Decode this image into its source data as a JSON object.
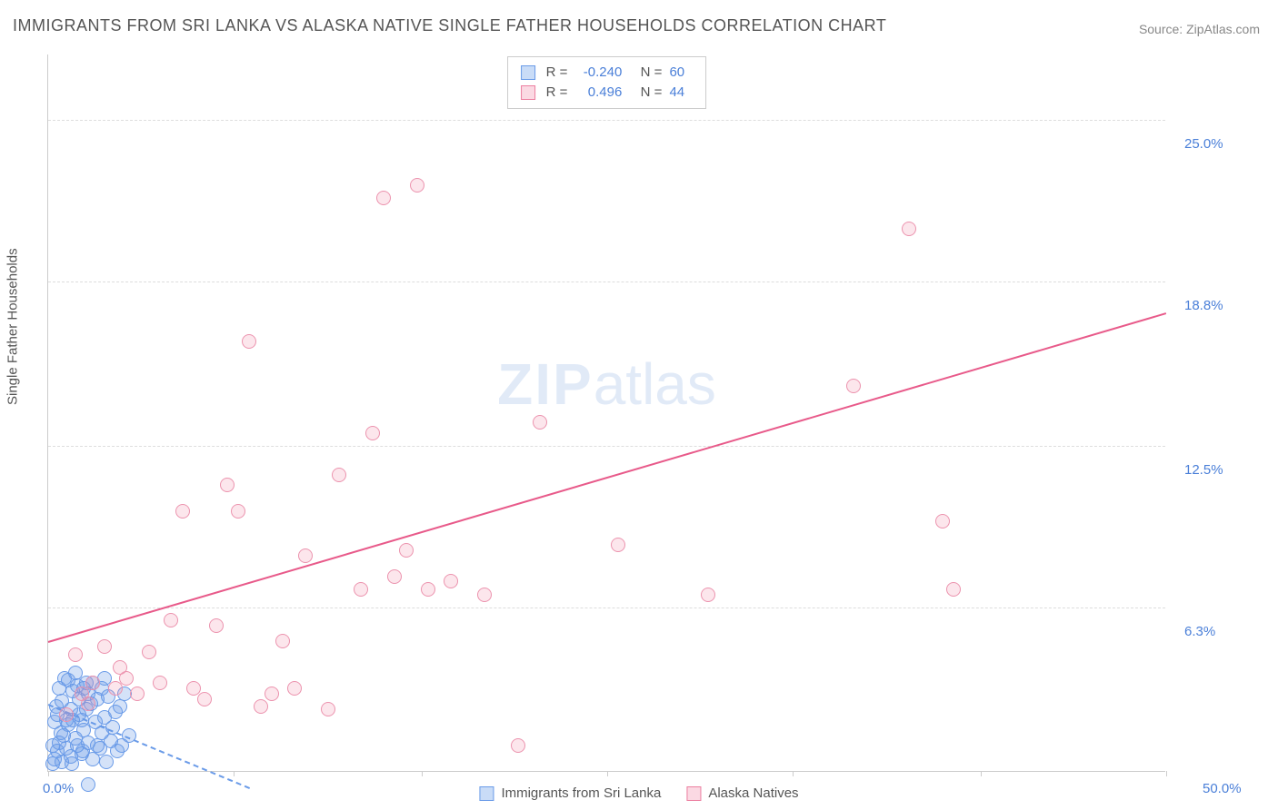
{
  "title": "IMMIGRANTS FROM SRI LANKA VS ALASKA NATIVE SINGLE FATHER HOUSEHOLDS CORRELATION CHART",
  "source_label": "Source: ZipAtlas.com",
  "y_axis_label": "Single Father Households",
  "watermark": {
    "zip": "ZIP",
    "atlas": "atlas"
  },
  "chart": {
    "type": "scatter",
    "background_color": "#ffffff",
    "grid_color": "#dddddd",
    "axis_color": "#cccccc",
    "tick_label_color": "#4a7fd8",
    "x_range": [
      0,
      50
    ],
    "y_range": [
      0,
      27.5
    ],
    "x_ticks": [
      0,
      8.3,
      16.7,
      25,
      33.3,
      41.7,
      50
    ],
    "x_tick_labels": {
      "0": "0.0%",
      "50": "50.0%"
    },
    "y_gridlines": [
      6.3,
      12.5,
      18.8,
      25.0
    ],
    "y_tick_labels": [
      "6.3%",
      "12.5%",
      "18.8%",
      "25.0%"
    ],
    "marker_radius": 8,
    "marker_stroke_width": 1.2,
    "trend_line_width": 2,
    "series": [
      {
        "name": "Immigrants from Sri Lanka",
        "color_fill": "rgba(100,150,230,0.28)",
        "color_stroke": "#6a9be8",
        "swatch_fill": "#c9dcf7",
        "swatch_border": "#6a9be8",
        "correlation_R": "-0.240",
        "correlation_N": "60",
        "trend": {
          "x1": 0,
          "y1": 2.6,
          "x2": 9,
          "y2": -0.6,
          "dashed": true,
          "color": "#6a9be8"
        },
        "points": [
          [
            0.2,
            0.3
          ],
          [
            0.3,
            0.5
          ],
          [
            0.4,
            0.8
          ],
          [
            0.5,
            1.1
          ],
          [
            0.6,
            0.4
          ],
          [
            0.7,
            1.4
          ],
          [
            0.8,
            0.9
          ],
          [
            0.9,
            1.8
          ],
          [
            1.0,
            0.6
          ],
          [
            1.1,
            2.0
          ],
          [
            1.2,
            1.3
          ],
          [
            1.3,
            1.0
          ],
          [
            1.4,
            2.2
          ],
          [
            1.5,
            0.7
          ],
          [
            1.6,
            1.6
          ],
          [
            1.7,
            2.4
          ],
          [
            1.8,
            1.1
          ],
          [
            1.9,
            2.6
          ],
          [
            2.0,
            0.5
          ],
          [
            2.1,
            1.9
          ],
          [
            2.2,
            2.8
          ],
          [
            2.3,
            0.9
          ],
          [
            2.4,
            1.5
          ],
          [
            2.5,
            2.1
          ],
          [
            2.6,
            0.4
          ],
          [
            2.7,
            2.9
          ],
          [
            2.8,
            1.2
          ],
          [
            2.9,
            1.7
          ],
          [
            3.0,
            2.3
          ],
          [
            3.1,
            0.8
          ],
          [
            3.2,
            2.5
          ],
          [
            3.3,
            1.0
          ],
          [
            3.4,
            3.0
          ],
          [
            3.6,
            1.4
          ],
          [
            2.0,
            3.4
          ],
          [
            2.5,
            3.6
          ],
          [
            1.6,
            3.2
          ],
          [
            1.8,
            3.0
          ],
          [
            0.9,
            3.5
          ],
          [
            1.2,
            3.8
          ],
          [
            0.4,
            2.2
          ],
          [
            0.6,
            2.7
          ],
          [
            1.0,
            2.4
          ],
          [
            1.4,
            2.8
          ],
          [
            0.3,
            1.9
          ],
          [
            0.5,
            3.2
          ],
          [
            0.8,
            2.0
          ],
          [
            1.1,
            3.1
          ],
          [
            1.5,
            2.0
          ],
          [
            1.7,
            3.4
          ],
          [
            2.2,
            1.0
          ],
          [
            2.4,
            3.2
          ],
          [
            0.2,
            1.0
          ],
          [
            0.35,
            2.5
          ],
          [
            0.55,
            1.5
          ],
          [
            0.75,
            3.6
          ],
          [
            1.05,
            0.3
          ],
          [
            1.3,
            3.3
          ],
          [
            1.55,
            0.8
          ],
          [
            1.8,
            -0.5
          ]
        ]
      },
      {
        "name": "Alaska Natives",
        "color_fill": "rgba(240,140,170,0.22)",
        "color_stroke": "#ec93ae",
        "swatch_fill": "#fbd9e3",
        "swatch_border": "#ec7fa0",
        "correlation_R": "0.496",
        "correlation_N": "44",
        "trend": {
          "x1": 0,
          "y1": 5.0,
          "x2": 50,
          "y2": 17.6,
          "dashed": false,
          "color": "#e85a8a"
        },
        "points": [
          [
            0.8,
            2.2
          ],
          [
            1.2,
            4.5
          ],
          [
            1.5,
            3.0
          ],
          [
            1.8,
            2.6
          ],
          [
            2.0,
            3.4
          ],
          [
            2.5,
            4.8
          ],
          [
            3.0,
            3.2
          ],
          [
            3.2,
            4.0
          ],
          [
            3.5,
            3.6
          ],
          [
            4.0,
            3.0
          ],
          [
            4.5,
            4.6
          ],
          [
            5.0,
            3.4
          ],
          [
            5.5,
            5.8
          ],
          [
            6.0,
            10.0
          ],
          [
            6.5,
            3.2
          ],
          [
            7.0,
            2.8
          ],
          [
            7.5,
            5.6
          ],
          [
            8.0,
            11.0
          ],
          [
            8.5,
            10.0
          ],
          [
            9.0,
            16.5
          ],
          [
            9.5,
            2.5
          ],
          [
            10.0,
            3.0
          ],
          [
            10.5,
            5.0
          ],
          [
            11.0,
            3.2
          ],
          [
            11.5,
            8.3
          ],
          [
            12.5,
            2.4
          ],
          [
            13.0,
            11.4
          ],
          [
            14.0,
            7.0
          ],
          [
            14.5,
            13.0
          ],
          [
            15.0,
            22.0
          ],
          [
            15.5,
            7.5
          ],
          [
            16.0,
            8.5
          ],
          [
            16.5,
            22.5
          ],
          [
            17.0,
            7.0
          ],
          [
            18.0,
            7.3
          ],
          [
            19.5,
            6.8
          ],
          [
            21.0,
            1.0
          ],
          [
            22.0,
            13.4
          ],
          [
            25.5,
            8.7
          ],
          [
            29.5,
            6.8
          ],
          [
            36.0,
            14.8
          ],
          [
            38.5,
            20.8
          ],
          [
            40.0,
            9.6
          ],
          [
            40.5,
            7.0
          ]
        ]
      }
    ],
    "legend_top": {
      "border_color": "#cccccc",
      "bg_color": "#ffffff",
      "label_color": "#555555",
      "value_color": "#4a7fd8"
    },
    "legend_bottom": {
      "text_color": "#555555"
    }
  }
}
